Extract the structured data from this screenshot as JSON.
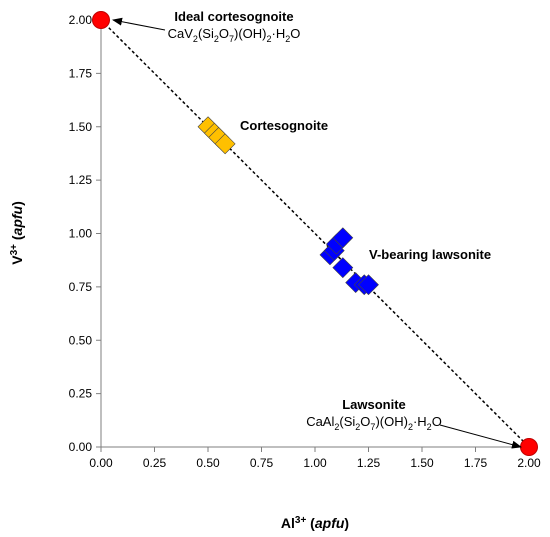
{
  "chart_data": {
    "type": "scatter",
    "title": "",
    "xlabel": {
      "base": "Al",
      "sup": "3+",
      "unit": "apfu"
    },
    "ylabel": {
      "base": "V",
      "sup": "3+",
      "unit": "apfu"
    },
    "xlim": [
      0,
      2
    ],
    "ylim": [
      0,
      2
    ],
    "x_ticks": [
      "0.00",
      "0.25",
      "0.50",
      "0.75",
      "1.00",
      "1.25",
      "1.50",
      "1.75",
      "2.00"
    ],
    "y_ticks": [
      "0.00",
      "0.25",
      "0.50",
      "0.75",
      "1.00",
      "1.25",
      "1.50",
      "1.75",
      "2.00"
    ],
    "grid": false,
    "trend_line": {
      "style": "dashed",
      "from": [
        0,
        2
      ],
      "to": [
        2,
        0
      ]
    },
    "series": [
      {
        "marker": "circle",
        "color": "#ff0000",
        "points": [
          {
            "x": 0.0,
            "y": 2.0
          },
          {
            "x": 2.0,
            "y": 0.0
          }
        ]
      },
      {
        "marker": "diamond",
        "color": "#ffc000",
        "points": [
          {
            "x": 0.5,
            "y": 1.5
          },
          {
            "x": 0.53,
            "y": 1.47
          },
          {
            "x": 0.55,
            "y": 1.45
          },
          {
            "x": 0.58,
            "y": 1.42
          }
        ]
      },
      {
        "marker": "diamond",
        "color": "#0000ff",
        "points": [
          {
            "x": 1.07,
            "y": 0.9
          },
          {
            "x": 1.09,
            "y": 0.92
          },
          {
            "x": 1.1,
            "y": 0.95
          },
          {
            "x": 1.13,
            "y": 0.98
          },
          {
            "x": 1.13,
            "y": 0.84
          },
          {
            "x": 1.19,
            "y": 0.77
          },
          {
            "x": 1.23,
            "y": 0.76
          },
          {
            "x": 1.25,
            "y": 0.76
          }
        ]
      }
    ],
    "annotations": [
      {
        "title": "Ideal cortesognoite",
        "formula": [
          "CaV",
          {
            "sub": "2"
          },
          "(Si",
          {
            "sub": "2"
          },
          "O",
          {
            "sub": "7"
          },
          ")(OH)",
          {
            "sub": "2"
          },
          "·H",
          {
            "sub": "2"
          },
          "O"
        ],
        "arrow_to": [
          0.0,
          2.0
        ]
      },
      {
        "title": "Cortesognoite"
      },
      {
        "title": "V-bearing lawsonite"
      },
      {
        "title": "Lawsonite",
        "formula": [
          "CaAl",
          {
            "sub": "2"
          },
          "(Si",
          {
            "sub": "2"
          },
          "O",
          {
            "sub": "7"
          },
          ")(OH)",
          {
            "sub": "2"
          },
          "·H",
          {
            "sub": "2"
          },
          "O"
        ],
        "arrow_to": [
          2.0,
          0.0
        ]
      }
    ]
  }
}
